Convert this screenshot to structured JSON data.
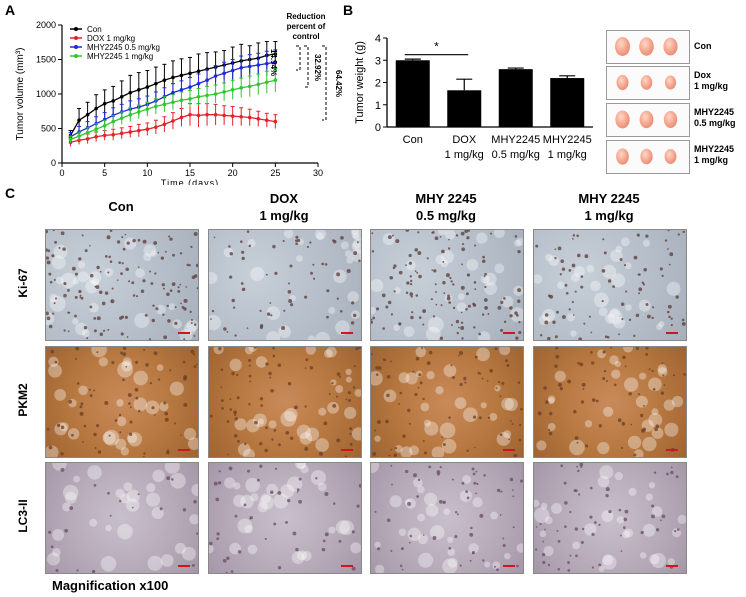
{
  "panels": {
    "a": "A",
    "b": "B",
    "c": "C"
  },
  "chart_data": [
    {
      "type": "line",
      "xlabel": "Time (days)",
      "ylabel": "Tumor volume (mm³)",
      "xlim": [
        0,
        30
      ],
      "ylim": [
        0,
        2000
      ],
      "xticks": [
        "0",
        "5",
        "10",
        "15",
        "20",
        "25",
        "30"
      ],
      "yticks": [
        "0",
        "500",
        "1000",
        "1500",
        "2000"
      ],
      "x": [
        1,
        2,
        3,
        4,
        5,
        6,
        7,
        8,
        9,
        10,
        11,
        12,
        13,
        14,
        15,
        16,
        17,
        18,
        19,
        20,
        21,
        22,
        23,
        24,
        25
      ],
      "series": [
        {
          "name": "Con",
          "color": "#000000",
          "values": [
            400,
            620,
            700,
            790,
            860,
            900,
            960,
            1020,
            1060,
            1100,
            1150,
            1200,
            1240,
            1270,
            1300,
            1330,
            1360,
            1390,
            1420,
            1450,
            1480,
            1500,
            1520,
            1560,
            1580
          ],
          "errors": [
            70,
            170,
            180,
            200,
            200,
            210,
            230,
            250,
            250,
            240,
            240,
            230,
            240,
            240,
            230,
            250,
            240,
            220,
            210,
            230,
            240,
            200,
            220,
            200,
            180
          ]
        },
        {
          "name": "DOX 1 mg/kg",
          "color": "#e8202a",
          "values": [
            300,
            330,
            350,
            380,
            400,
            410,
            430,
            450,
            470,
            490,
            520,
            560,
            610,
            660,
            700,
            690,
            700,
            700,
            690,
            680,
            670,
            660,
            640,
            620,
            600
          ],
          "errors": [
            60,
            60,
            70,
            70,
            70,
            80,
            80,
            80,
            90,
            90,
            100,
            110,
            120,
            130,
            160,
            170,
            160,
            150,
            140,
            140,
            130,
            120,
            110,
            100,
            100
          ]
        },
        {
          "name": "MHY2245 0.5 mg/kg",
          "color": "#1f2bd6",
          "values": [
            380,
            450,
            510,
            570,
            630,
            690,
            740,
            780,
            810,
            850,
            900,
            960,
            1020,
            1060,
            1100,
            1150,
            1200,
            1260,
            1300,
            1340,
            1380,
            1400,
            1420,
            1440,
            1460
          ],
          "errors": [
            60,
            80,
            90,
            100,
            100,
            110,
            110,
            120,
            120,
            120,
            130,
            130,
            130,
            130,
            140,
            140,
            150,
            150,
            160,
            160,
            170,
            170,
            170,
            180,
            180
          ]
        },
        {
          "name": "MHY2245 1 mg/kg",
          "color": "#2fc92f",
          "values": [
            340,
            390,
            440,
            490,
            540,
            600,
            650,
            700,
            740,
            780,
            820,
            850,
            880,
            910,
            930,
            960,
            980,
            1000,
            1030,
            1060,
            1090,
            1110,
            1140,
            1170,
            1200
          ],
          "errors": [
            50,
            60,
            70,
            80,
            80,
            90,
            90,
            100,
            100,
            100,
            110,
            110,
            110,
            120,
            120,
            120,
            130,
            130,
            130,
            140,
            140,
            150,
            150,
            160,
            170
          ]
        }
      ]
    },
    {
      "type": "bar",
      "ylabel": "Tumor weight (g)",
      "ylim": [
        0,
        4
      ],
      "yticks": [
        "0",
        "1",
        "2",
        "3",
        "4"
      ],
      "categories": [
        [
          "Con"
        ],
        [
          "DOX",
          "1 mg/kg"
        ],
        [
          "MHY2245",
          "0.5 mg/kg"
        ],
        [
          "MHY2245",
          "1 mg/kg"
        ]
      ],
      "values": [
        3.0,
        1.65,
        2.6,
        2.2
      ],
      "errors": [
        0.05,
        0.5,
        0.05,
        0.1
      ],
      "significance": "*"
    }
  ],
  "annotation": {
    "header": [
      "Reduction",
      "percent of",
      "control"
    ],
    "pct1": "14.94%",
    "pct2": "32.92%",
    "pct3": "64.42%"
  },
  "tumor_photos": [
    {
      "label": [
        "Con"
      ]
    },
    {
      "label": [
        "Dox",
        "1 mg/kg"
      ]
    },
    {
      "label": [
        "MHY2245",
        "0.5 mg/kg"
      ]
    },
    {
      "label": [
        "MHY2245",
        "1 mg/kg"
      ]
    }
  ],
  "histology": {
    "columns": [
      [
        "Con"
      ],
      [
        "DOX",
        "1 mg/kg"
      ],
      [
        "MHY 2245",
        "0.5 mg/kg"
      ],
      [
        "MHY 2245",
        "1 mg/kg"
      ]
    ],
    "rows": [
      "Ki-67",
      "PKM2",
      "LC3-II"
    ],
    "magnification": "Magnification x100"
  }
}
